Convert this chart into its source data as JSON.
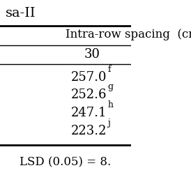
{
  "title_partial": "sa-II",
  "col_header": "Intra-row spacing  (cm",
  "sub_header": "30",
  "values": [
    {
      "num": "257.0",
      "sup": "f"
    },
    {
      "num": "252.6",
      "sup": "g"
    },
    {
      "num": "247.1",
      "sup": "h"
    },
    {
      "num": "223.2",
      "sup": "j"
    }
  ],
  "lsd_row": "LSD (0.05) = 8.",
  "bg_color": "#ffffff",
  "text_color": "#000000",
  "line_color": "#000000",
  "font_size": 13,
  "sup_font_size": 9
}
